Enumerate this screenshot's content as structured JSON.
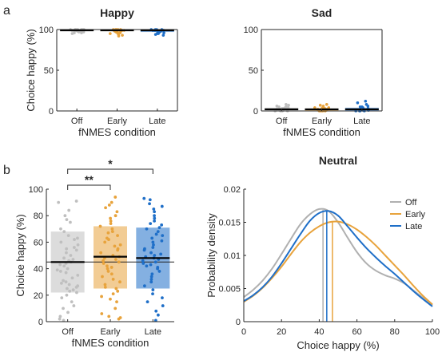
{
  "panel_labels": {
    "a": "a",
    "b": "b"
  },
  "chart_data": [
    {
      "type": "scatter",
      "title": "Happy",
      "xlabel": "fNMES condition",
      "ylabel": "Choice happy (%)",
      "categories": [
        "Off",
        "Early",
        "Late"
      ],
      "ylim": [
        0,
        100
      ],
      "yticks": [
        0,
        50,
        100
      ],
      "colors": [
        "#bfbfbf",
        "#e8a33c",
        "#1f6fc8"
      ],
      "means": [
        99,
        99,
        99
      ],
      "iqr": [
        [
          98,
          100
        ],
        [
          98,
          100
        ],
        [
          97,
          100
        ]
      ],
      "points": [
        [
          100,
          100,
          100,
          100,
          99,
          99,
          99,
          98,
          98,
          97,
          96,
          95,
          100,
          100,
          99,
          98,
          100,
          97,
          96,
          99
        ],
        [
          100,
          100,
          100,
          99,
          99,
          98,
          98,
          97,
          96,
          95,
          94,
          92,
          100,
          99,
          98,
          97,
          100,
          99,
          96,
          93
        ],
        [
          100,
          100,
          99,
          99,
          98,
          98,
          97,
          96,
          95,
          94,
          93,
          100,
          99,
          98,
          97,
          96,
          100,
          99,
          95,
          97
        ]
      ]
    },
    {
      "type": "scatter",
      "title": "Sad",
      "xlabel": "fNMES condition",
      "ylabel": "",
      "categories": [
        "Off",
        "Early",
        "Late"
      ],
      "ylim": [
        0,
        100
      ],
      "yticks": [
        0,
        50,
        100
      ],
      "colors": [
        "#bfbfbf",
        "#e8a33c",
        "#1f6fc8"
      ],
      "means": [
        2,
        2,
        2
      ],
      "iqr": [
        [
          0,
          4
        ],
        [
          0,
          3
        ],
        [
          0,
          4
        ]
      ],
      "points": [
        [
          0,
          0,
          0,
          1,
          1,
          2,
          2,
          3,
          3,
          4,
          5,
          6,
          7,
          8,
          0,
          1,
          2,
          3,
          5,
          4
        ],
        [
          0,
          0,
          0,
          1,
          1,
          2,
          2,
          3,
          3,
          4,
          5,
          6,
          7,
          8,
          0,
          1,
          2,
          4,
          3,
          2
        ],
        [
          0,
          0,
          0,
          1,
          1,
          2,
          2,
          3,
          4,
          5,
          6,
          8,
          10,
          12,
          0,
          1,
          2,
          3,
          5,
          4
        ]
      ]
    },
    {
      "type": "scatter",
      "title": "",
      "xlabel": "fNMES condition",
      "ylabel": "Choice happy (%)",
      "categories": [
        "Off",
        "Early",
        "Late"
      ],
      "ylim": [
        0,
        100
      ],
      "yticks": [
        0,
        20,
        40,
        60,
        80,
        100
      ],
      "colors": [
        "#bfbfbf",
        "#e8a33c",
        "#1f6fc8"
      ],
      "means": [
        45,
        49,
        48
      ],
      "grand_mean": 45,
      "iqr": [
        [
          22,
          68
        ],
        [
          25,
          72
        ],
        [
          25,
          71
        ]
      ],
      "significance": [
        {
          "from": "Off",
          "to": "Early",
          "label": "**"
        },
        {
          "from": "Off",
          "to": "Late",
          "label": "*"
        }
      ],
      "points": [
        [
          91,
          90,
          84,
          80,
          77,
          75,
          70,
          68,
          65,
          63,
          62,
          60,
          58,
          56,
          55,
          54,
          52,
          50,
          48,
          47,
          46,
          45,
          44,
          43,
          42,
          40,
          39,
          38,
          37,
          35,
          33,
          31,
          30,
          29,
          28,
          27,
          26,
          25,
          24,
          23,
          22,
          20,
          18,
          15,
          12,
          10,
          7,
          4,
          2,
          1
        ],
        [
          94,
          90,
          88,
          86,
          83,
          80,
          78,
          76,
          74,
          72,
          70,
          68,
          67,
          65,
          63,
          62,
          60,
          58,
          57,
          55,
          54,
          52,
          50,
          49,
          48,
          47,
          46,
          45,
          44,
          42,
          41,
          40,
          38,
          36,
          34,
          32,
          30,
          28,
          26,
          25,
          23,
          21,
          19,
          17,
          15,
          10,
          6,
          4,
          3,
          2
        ],
        [
          93,
          92,
          89,
          87,
          85,
          83,
          80,
          78,
          76,
          74,
          73,
          71,
          70,
          68,
          66,
          65,
          63,
          61,
          60,
          58,
          56,
          55,
          54,
          52,
          51,
          50,
          49,
          48,
          47,
          46,
          45,
          44,
          43,
          42,
          41,
          40,
          38,
          36,
          34,
          32,
          30,
          27,
          24,
          21,
          18,
          15,
          12,
          8,
          5,
          1
        ]
      ]
    },
    {
      "type": "line",
      "title": "Neutral",
      "xlabel": "Choice happy (%)",
      "ylabel": "Probability density",
      "xlim": [
        0,
        100
      ],
      "ylim": [
        0,
        0.02
      ],
      "xticks": [
        0,
        20,
        40,
        60,
        80,
        100
      ],
      "yticks": [
        0,
        0.005,
        0.01,
        0.015,
        0.02
      ],
      "legend_position": "top-right",
      "x": [
        0,
        5,
        10,
        15,
        20,
        25,
        30,
        35,
        40,
        45,
        50,
        55,
        60,
        65,
        70,
        75,
        80,
        85,
        90,
        95,
        100
      ],
      "series": [
        {
          "name": "Off",
          "color": "#b0b0b0",
          "mode": 42,
          "values": [
            0.0037,
            0.0048,
            0.0062,
            0.008,
            0.0102,
            0.0125,
            0.0147,
            0.0162,
            0.017,
            0.0167,
            0.015,
            0.0127,
            0.0105,
            0.0088,
            0.0077,
            0.007,
            0.0065,
            0.0058,
            0.0047,
            0.0036,
            0.0025
          ]
        },
        {
          "name": "Early",
          "color": "#e8a33c",
          "mode": 47,
          "values": [
            0.003,
            0.0039,
            0.0051,
            0.0066,
            0.0083,
            0.0102,
            0.012,
            0.0134,
            0.0144,
            0.015,
            0.0151,
            0.0147,
            0.0139,
            0.0128,
            0.0115,
            0.01,
            0.0085,
            0.007,
            0.0054,
            0.0039,
            0.0026
          ]
        },
        {
          "name": "Late",
          "color": "#1f6fc8",
          "mode": 44,
          "values": [
            0.0031,
            0.004,
            0.0052,
            0.0068,
            0.0088,
            0.011,
            0.0132,
            0.0152,
            0.0164,
            0.0167,
            0.016,
            0.0144,
            0.0127,
            0.0111,
            0.0097,
            0.0084,
            0.0072,
            0.0059,
            0.0046,
            0.0034,
            0.0023
          ]
        }
      ]
    }
  ]
}
